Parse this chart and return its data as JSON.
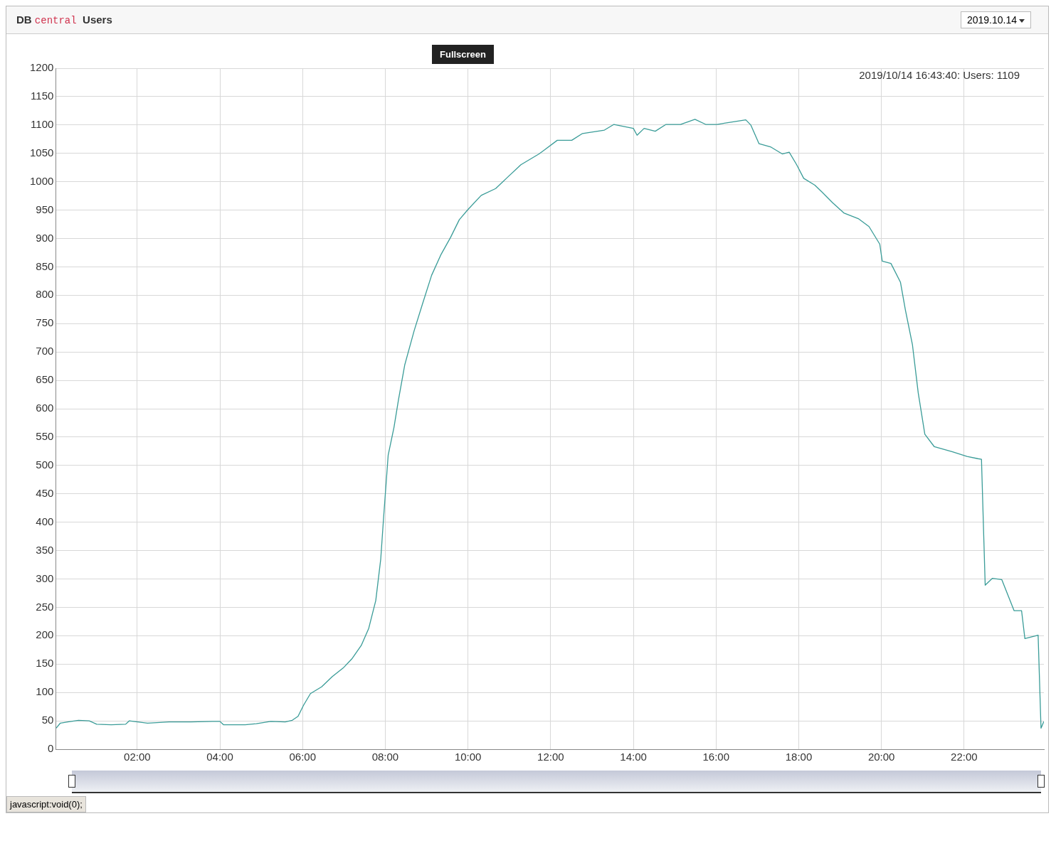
{
  "chart_data": {
    "type": "line",
    "title": "DB central Users",
    "annotations": [
      "2019/10/14 16:43:40: Users: 1109",
      "2019.10.14",
      "Fullscreen",
      "javascript:void(0);"
    ],
    "xlim": [
      0.03,
      23.93
    ],
    "xticks": [
      {
        "value": 2,
        "label": "02:00"
      },
      {
        "value": 4,
        "label": "04:00"
      },
      {
        "value": 6,
        "label": "06:00"
      },
      {
        "value": 8,
        "label": "08:00"
      },
      {
        "value": 10,
        "label": "10:00"
      },
      {
        "value": 12,
        "label": "12:00"
      },
      {
        "value": 14,
        "label": "14:00"
      },
      {
        "value": 16,
        "label": "16:00"
      },
      {
        "value": 18,
        "label": "18:00"
      },
      {
        "value": 20,
        "label": "20:00"
      },
      {
        "value": 22,
        "label": "22:00"
      }
    ],
    "ylim": [
      0,
      1200
    ],
    "yticks": [
      0,
      50,
      100,
      150,
      200,
      250,
      300,
      350,
      400,
      450,
      500,
      550,
      600,
      650,
      700,
      750,
      800,
      850,
      900,
      950,
      1000,
      1050,
      1100,
      1150,
      1200
    ],
    "grid": true,
    "legend": false,
    "marker": "none",
    "line_style": "solid",
    "series": [
      {
        "color": "#3a9c98",
        "x": [
          0.04,
          0.14,
          0.32,
          0.58,
          0.84,
          1.02,
          1.37,
          1.72,
          1.81,
          2.25,
          2.77,
          3.3,
          3.82,
          4.0,
          4.09,
          4.61,
          4.88,
          5.23,
          5.58,
          5.75,
          5.89,
          6.02,
          6.19,
          6.46,
          6.72,
          6.98,
          7.19,
          7.42,
          7.6,
          7.77,
          7.89,
          7.96,
          8.07,
          8.21,
          8.32,
          8.47,
          8.7,
          8.91,
          9.12,
          9.35,
          9.58,
          9.79,
          10.0,
          10.32,
          10.67,
          10.93,
          11.28,
          11.72,
          12.16,
          12.51,
          12.77,
          13.3,
          13.53,
          14.0,
          14.09,
          14.26,
          14.53,
          14.79,
          15.14,
          15.49,
          15.75,
          16.02,
          16.28,
          16.72,
          16.84,
          17.04,
          17.33,
          17.6,
          17.77,
          17.95,
          18.12,
          18.39,
          18.56,
          18.82,
          19.09,
          19.44,
          19.7,
          19.96,
          20.02,
          20.23,
          20.46,
          20.58,
          20.75,
          20.89,
          21.05,
          21.28,
          21.72,
          22.07,
          22.33,
          22.42,
          22.51,
          22.68,
          22.91,
          23.21,
          23.39,
          23.47,
          23.79,
          23.86,
          23.93
        ],
        "values": [
          37,
          46,
          48,
          51,
          50,
          44,
          43,
          44,
          50,
          46,
          48,
          48,
          49,
          49,
          43,
          43,
          45,
          49,
          48,
          51,
          58,
          77,
          98,
          110,
          128,
          143,
          159,
          183,
          213,
          262,
          335,
          409,
          518,
          567,
          616,
          677,
          738,
          787,
          835,
          872,
          902,
          933,
          951,
          976,
          988,
          1006,
          1030,
          1049,
          1073,
          1073,
          1085,
          1091,
          1101,
          1094,
          1082,
          1094,
          1089,
          1101,
          1101,
          1110,
          1101,
          1101,
          1104,
          1109,
          1100,
          1067,
          1061,
          1049,
          1052,
          1030,
          1006,
          994,
          982,
          963,
          945,
          935,
          921,
          890,
          860,
          856,
          823,
          774,
          713,
          628,
          555,
          533,
          524,
          516,
          512,
          511,
          289,
          301,
          299,
          244,
          244,
          195,
          201,
          37,
          49
        ]
      }
    ]
  }
}
